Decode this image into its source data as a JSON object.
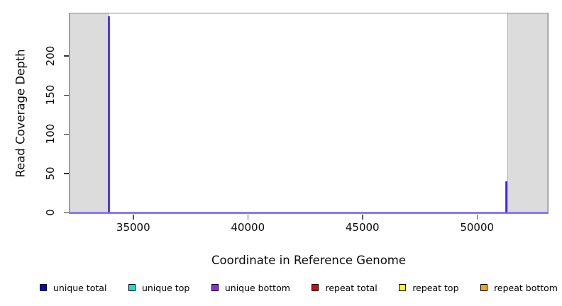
{
  "figure": {
    "x_axis_title": "Coordinate in Reference Genome",
    "y_axis_title": "Read Coverage Depth"
  },
  "legend": {
    "items": [
      {
        "label": "unique total",
        "color": "#0000ee"
      },
      {
        "label": "unique top",
        "color": "#00e5ee"
      },
      {
        "label": "unique bottom",
        "color": "#a020f0"
      },
      {
        "label": "repeat total",
        "color": "#e60000"
      },
      {
        "label": "repeat top",
        "color": "#ffff00"
      },
      {
        "label": "repeat bottom",
        "color": "#ffa500"
      }
    ]
  },
  "chart_data": {
    "type": "bar",
    "style": "genome read-coverage spikes with shaded flanking regions",
    "title": "",
    "xlabel": "Coordinate in Reference Genome",
    "ylabel": "Read Coverage Depth",
    "xlim": [
      32220,
      53090
    ],
    "ylim": [
      0,
      254
    ],
    "x_ticks": [
      35000,
      40000,
      45000,
      50000
    ],
    "y_ticks": [
      0,
      50,
      100,
      150,
      200
    ],
    "grid": false,
    "legend_position": "bottom",
    "shaded_regions": [
      {
        "x_start": 32220,
        "x_end": 33920,
        "fill": "#dcdcdc"
      },
      {
        "x_start": 51330,
        "x_end": 53090,
        "fill": "#dcdcdc"
      }
    ],
    "spikes": [
      {
        "x": 33950,
        "value": 250,
        "series": "unique total / unique bottom",
        "color_core": "#2d18ee",
        "color_edge": "#8a74e8"
      },
      {
        "x": 51280,
        "value": 40,
        "series": "unique total / unique bottom",
        "color_core": "#2d18ee",
        "color_edge": "#8a74e8"
      }
    ],
    "baseline": {
      "value": 0,
      "color_core": "#6f55f0",
      "color_edge": "#a99af5"
    },
    "plot_border_color": "#8c8c8c"
  }
}
